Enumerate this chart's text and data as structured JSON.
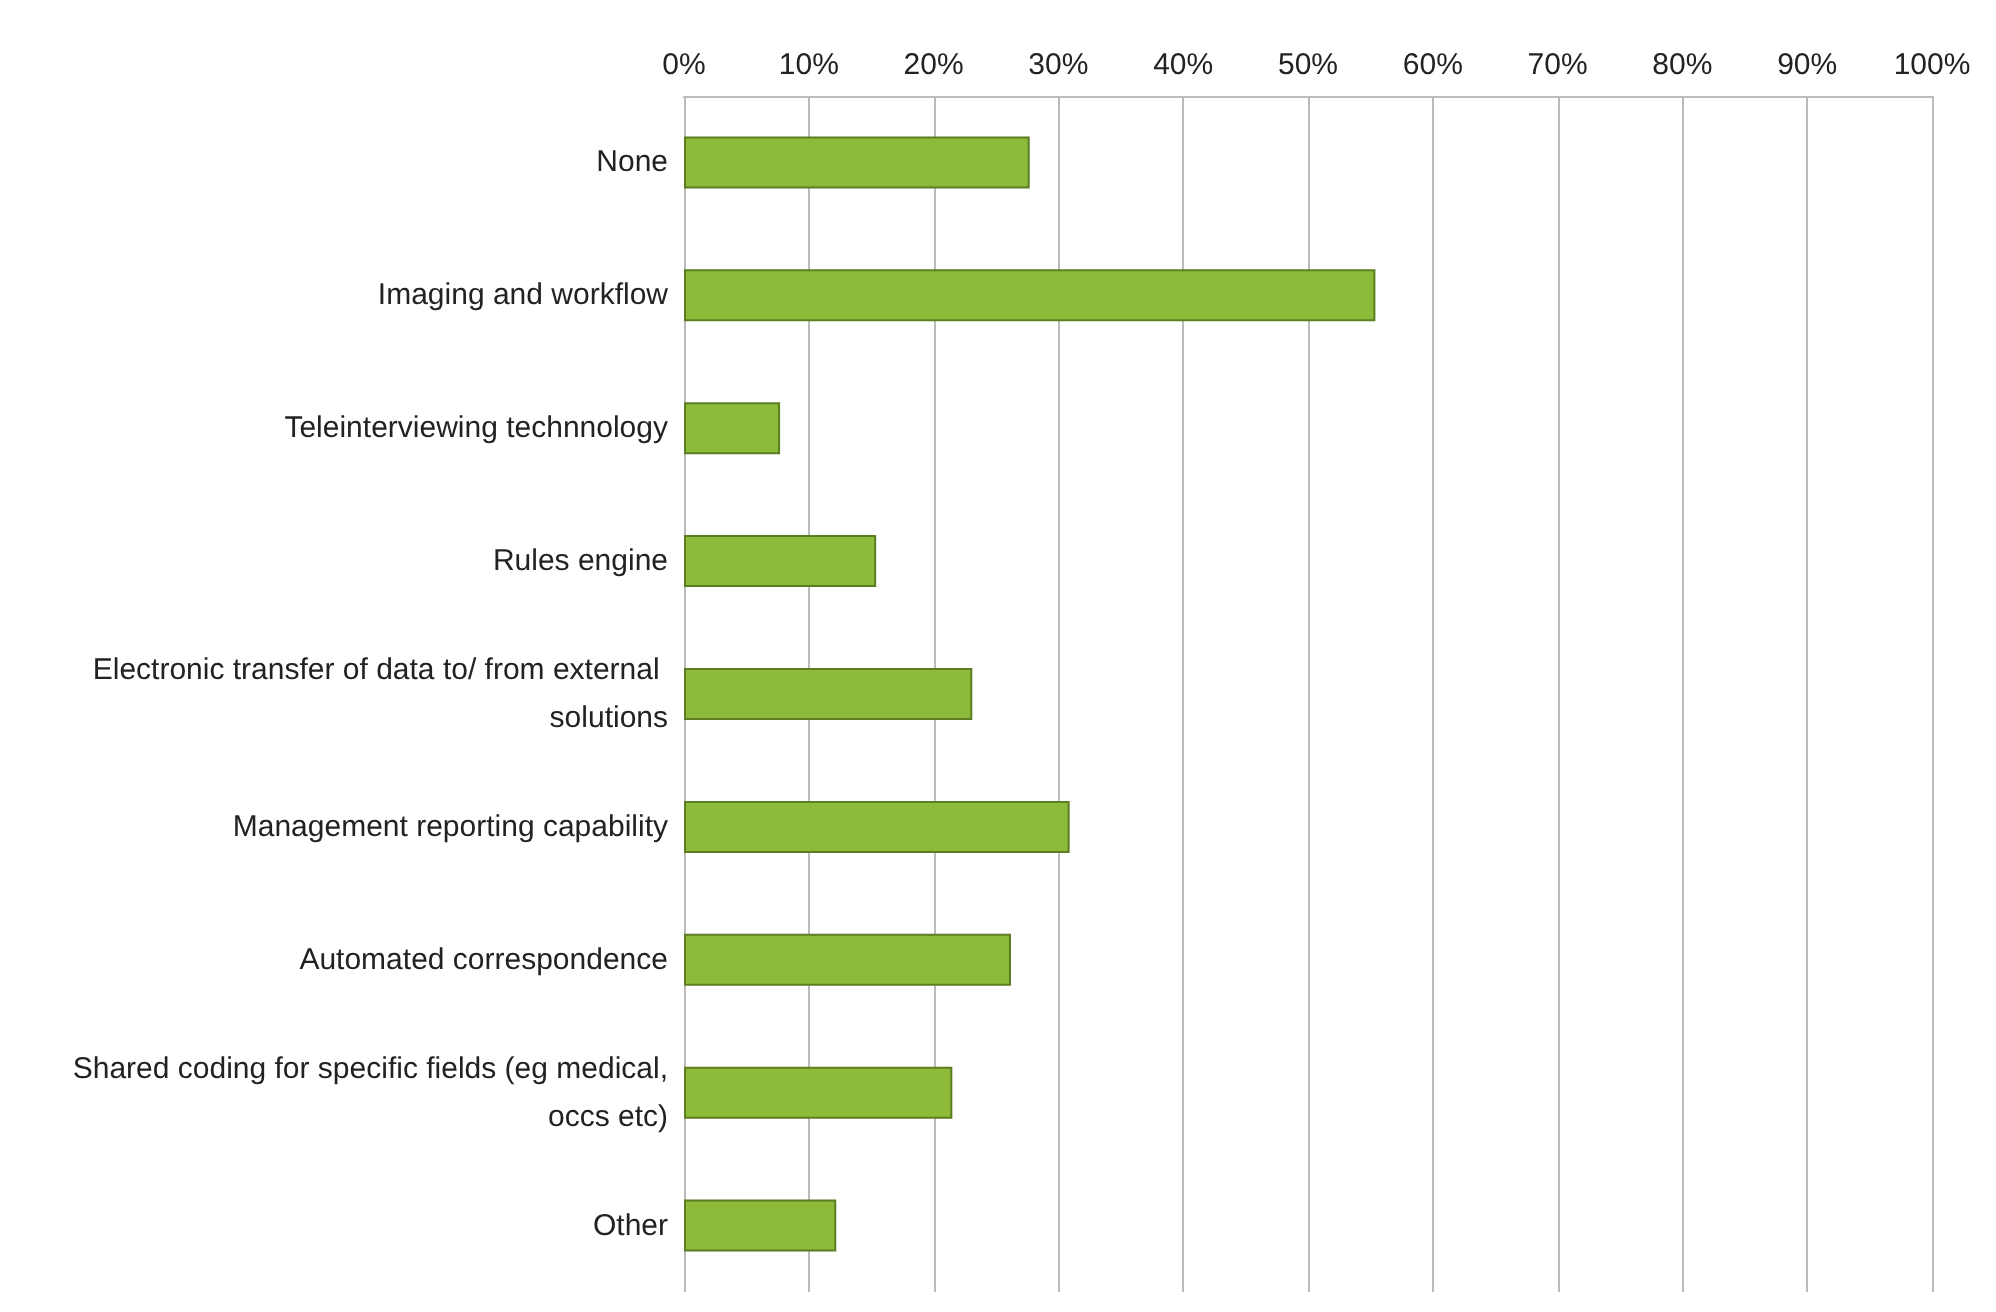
{
  "chart_data": {
    "type": "bar",
    "orientation": "horizontal",
    "categories": [
      "None",
      "Imaging and workflow",
      "Teleinterviewing technnology",
      "Rules engine",
      "Electronic transfer of data to/ from external solutions",
      "Management reporting capability",
      "Automated correspondence",
      "Shared coding for specific fields (eg medical, occs etc)",
      "Other"
    ],
    "values": [
      27.7,
      55.4,
      7.7,
      15.4,
      23.1,
      30.9,
      26.2,
      21.5,
      12.2
    ],
    "color": "#8cbb3a",
    "xlim": [
      0,
      100
    ],
    "xticks": [
      {
        "value": 0,
        "label": "0%"
      },
      {
        "value": 10,
        "label": "10%"
      },
      {
        "value": 20,
        "label": "20%"
      },
      {
        "value": 30,
        "label": "30%"
      },
      {
        "value": 40,
        "label": "40%"
      },
      {
        "value": 50,
        "label": "50%"
      },
      {
        "value": 60,
        "label": "60%"
      },
      {
        "value": 70,
        "label": "70%"
      },
      {
        "value": 80,
        "label": "80%"
      },
      {
        "value": 90,
        "label": "90%"
      },
      {
        "value": 100,
        "label": "100%"
      }
    ],
    "grid": "x"
  }
}
